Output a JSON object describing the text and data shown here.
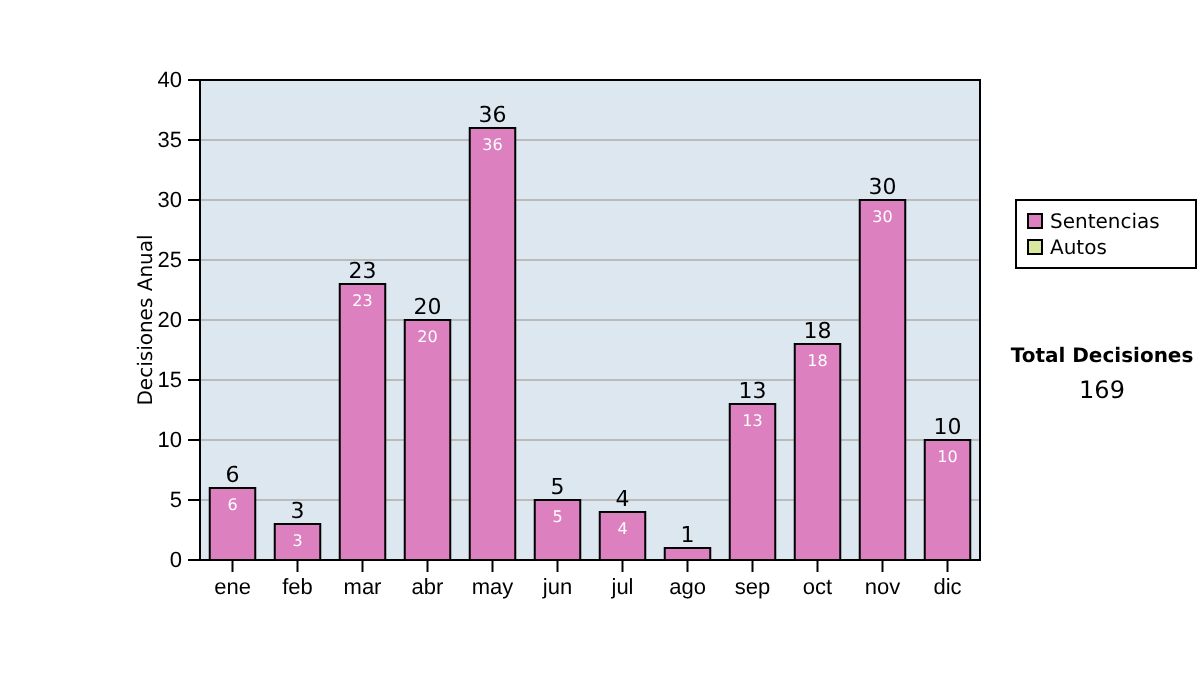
{
  "chart_data": {
    "type": "bar",
    "ylabel": "Decisiones Anual",
    "categories": [
      "ene",
      "feb",
      "mar",
      "abr",
      "may",
      "jun",
      "jul",
      "ago",
      "sep",
      "oct",
      "nov",
      "dic"
    ],
    "series": [
      {
        "name": "Sentencias",
        "color": "#dd80c0",
        "values": [
          6,
          3,
          23,
          20,
          36,
          5,
          4,
          1,
          13,
          18,
          30,
          10
        ],
        "value_labels": [
          "6",
          "3",
          "23",
          "20",
          "36",
          "5",
          "4",
          null,
          "13",
          "18",
          "30",
          "10"
        ]
      },
      {
        "name": "Autos",
        "color": "#d8e8a0",
        "values": [
          0,
          0,
          0,
          0,
          0,
          0,
          0,
          0,
          0,
          0,
          0,
          0
        ]
      }
    ],
    "stacked": true,
    "totals": [
      "6",
      "3",
      "23",
      "20",
      "36",
      "5",
      "4",
      "1",
      "13",
      "18",
      "30",
      "10"
    ],
    "ylim": [
      0,
      40
    ],
    "yticks": [
      0,
      5,
      10,
      15,
      20,
      25,
      30,
      35,
      40
    ],
    "grid": "y",
    "legend": "right",
    "annotations": [
      "Total Decisiones",
      "169"
    ]
  }
}
